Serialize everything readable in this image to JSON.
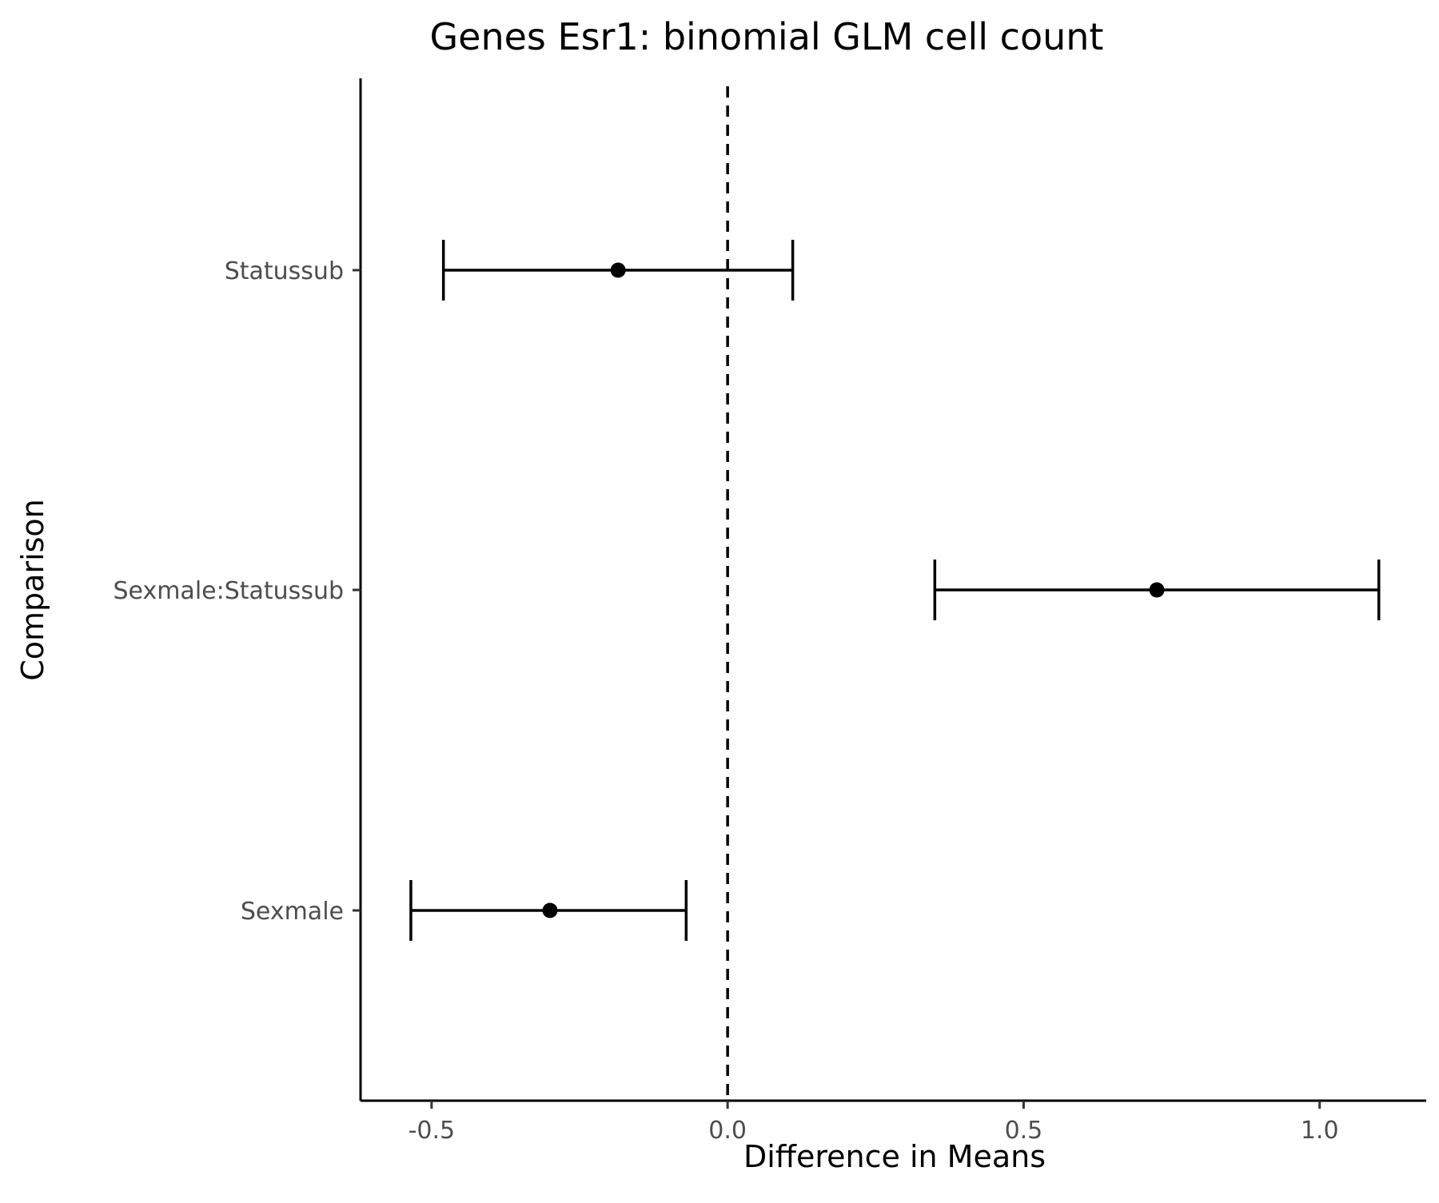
{
  "chart_data": {
    "type": "scatter",
    "subtype": "point-errorbar",
    "title": "Genes Esr1: binomial GLM cell count",
    "xlabel": "Difference in Means",
    "ylabel": "Comparison",
    "xlim": [
      -0.62,
      1.18
    ],
    "xticks": [
      -0.5,
      0.0,
      0.5,
      1.0
    ],
    "xtick_labels": [
      "-0.5",
      "0.0",
      "0.5",
      "1.0"
    ],
    "categories": [
      "Statussub",
      "Sexmale:Statussub",
      "Sexmale"
    ],
    "points": [
      {
        "label": "Statussub",
        "estimate": -0.185,
        "lower": -0.48,
        "upper": 0.11
      },
      {
        "label": "Sexmale:Statussub",
        "estimate": 0.725,
        "lower": 0.35,
        "upper": 1.1
      },
      {
        "label": "Sexmale",
        "estimate": -0.3,
        "lower": -0.535,
        "upper": -0.07
      }
    ],
    "reference_line": {
      "x": 0,
      "style": "dashed"
    },
    "grid": false,
    "legend": "none",
    "colors": {
      "points": "#000000",
      "axis": "#000000",
      "tick_labels": "#4d4d4d"
    }
  }
}
